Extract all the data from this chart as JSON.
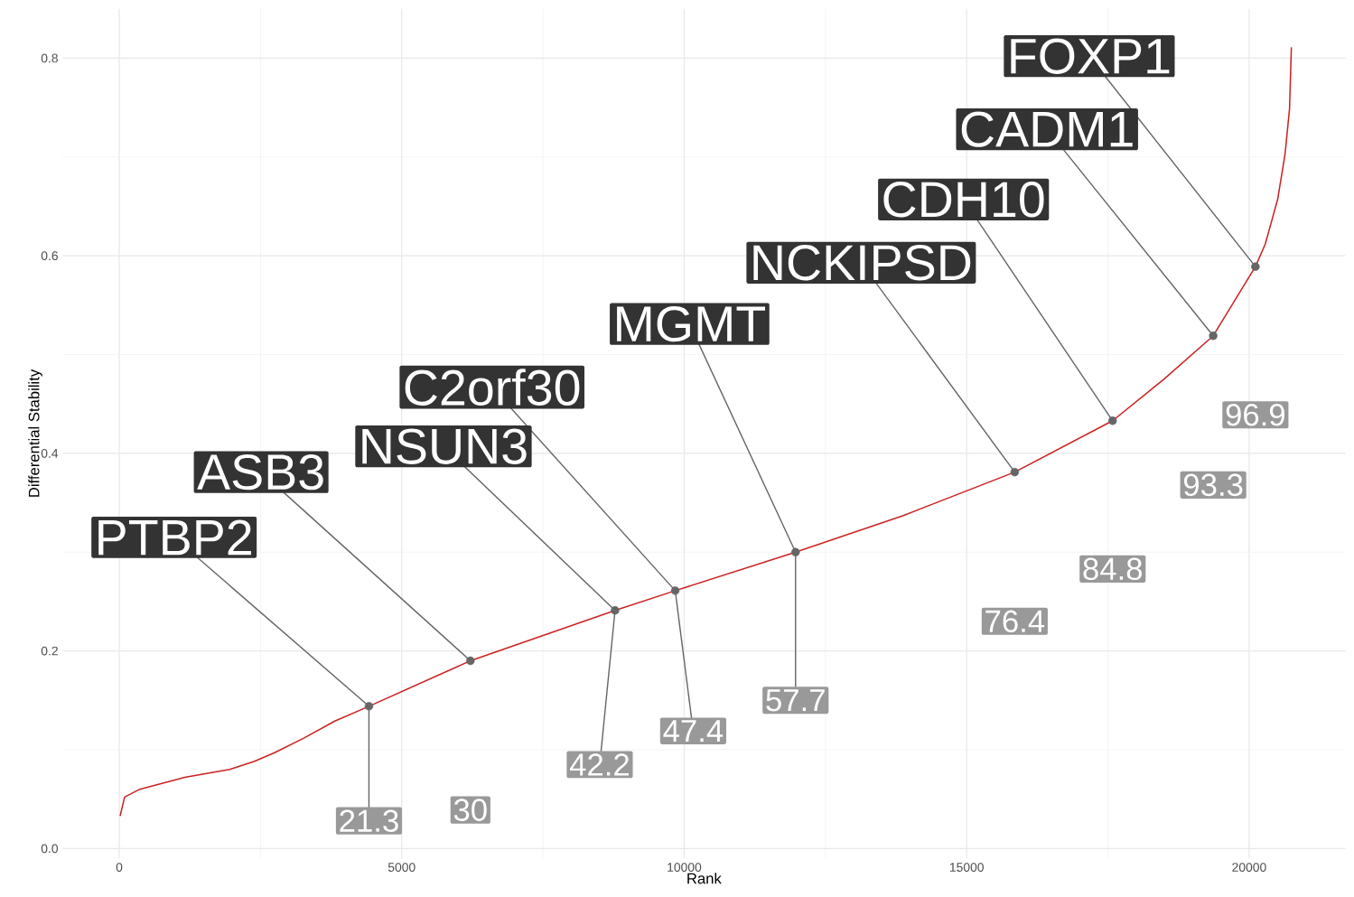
{
  "chart_data": {
    "type": "line",
    "xlabel": "Rank",
    "ylabel": "Differential Stability",
    "xlim": [
      -1000,
      21700
    ],
    "ylim": [
      -0.01,
      0.85
    ],
    "xticks": [
      0,
      5000,
      10000,
      15000,
      20000
    ],
    "yticks": [
      {
        "value": 0,
        "label": "0.0"
      },
      0.2,
      0.4,
      0.6,
      0.8
    ],
    "grid": true,
    "series": [
      {
        "color": "#cc2222",
        "x": [
          16,
          95,
          366,
          1161,
          1955,
          2385,
          2750,
          3275,
          3816,
          4420,
          6216,
          8776,
          9841,
          11971,
          13879,
          15850,
          17583,
          18490,
          19364,
          20111,
          20286,
          20504,
          20636,
          20715,
          20747
        ],
        "values": [
          0.033,
          0.052,
          0.06,
          0.072,
          0.08,
          0.088,
          0.097,
          0.112,
          0.129,
          0.144,
          0.19,
          0.241,
          0.261,
          0.3,
          0.337,
          0.381,
          0.433,
          0.475,
          0.519,
          0.589,
          0.612,
          0.657,
          0.703,
          0.749,
          0.811
        ]
      },
      {
        "type": "scatter",
        "color": "#666666",
        "marker": "circle",
        "x": [
          4420,
          6216,
          8776,
          9841,
          11971,
          15850,
          17583,
          19364,
          20111
        ],
        "values": [
          0.144,
          0.19,
          0.241,
          0.261,
          0.3,
          0.381,
          0.433,
          0.519,
          0.589
        ]
      }
    ],
    "annotations": [
      {
        "text": "PTBP2",
        "x": 4420,
        "y": 0.144
      },
      {
        "text": "ASB3",
        "x": 6216,
        "y": 0.19
      },
      {
        "text": "NSUN3",
        "x": 8776,
        "y": 0.241
      },
      {
        "text": "C2orf30",
        "x": 9841,
        "y": 0.261
      },
      {
        "text": "MGMT",
        "x": 11971,
        "y": 0.3
      },
      {
        "text": "NCKIPSD",
        "x": 15850,
        "y": 0.381
      },
      {
        "text": "CDH10",
        "x": 17583,
        "y": 0.433
      },
      {
        "text": "CADM1",
        "x": 19364,
        "y": 0.519
      },
      {
        "text": "FOXP1",
        "x": 20111,
        "y": 0.589
      },
      {
        "text": "21.3",
        "x": 4420,
        "y": 0.144
      },
      "30",
      {
        "text": "42.2",
        "x": 8776,
        "y": 0.241
      },
      {
        "text": "47.4",
        "x": 9841,
        "y": 0.261
      },
      {
        "text": "57.7",
        "x": 11971,
        "y": 0.3
      },
      "76.4",
      "84.8",
      "93.3",
      "96.9"
    ]
  }
}
